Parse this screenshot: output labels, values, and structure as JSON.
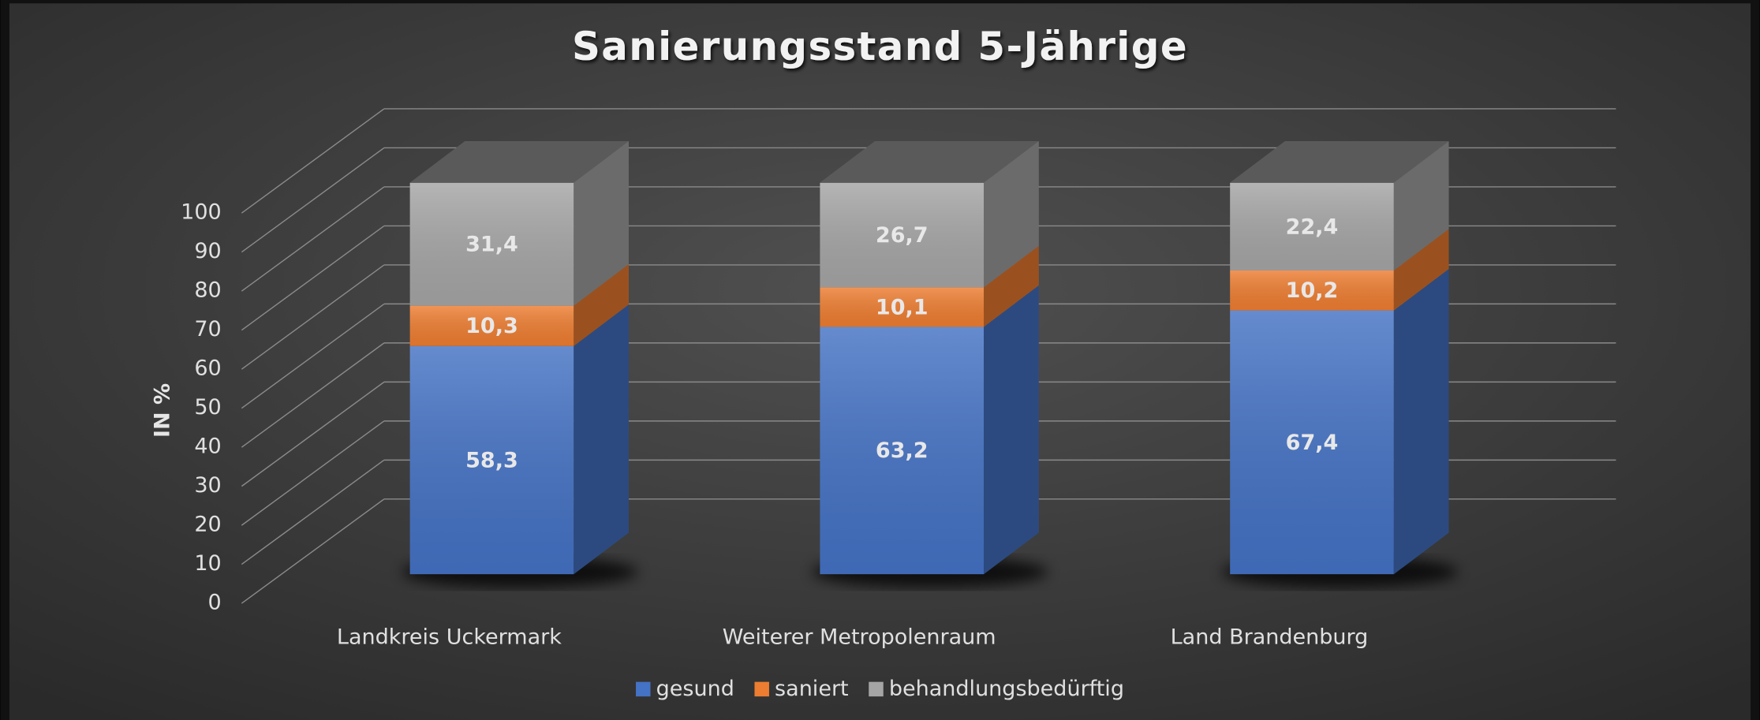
{
  "chart_data": {
    "type": "bar3d_stacked",
    "title": "Sanierungsstand 5-Jährige",
    "y_label": "IN %",
    "categories": [
      "Landkreis Uckermark",
      "Weiterer Metropolenraum",
      "Land Brandenburg"
    ],
    "series": [
      {
        "name": "gesund",
        "color": "#4472c4",
        "values": [
          58.3,
          63.2,
          67.4
        ],
        "value_labels": [
          "58,3",
          "63,2",
          "67,4"
        ]
      },
      {
        "name": "saniert",
        "color": "#ed7d31",
        "values": [
          10.3,
          10.1,
          10.2
        ],
        "value_labels": [
          "10,3",
          "10,1",
          "10,2"
        ]
      },
      {
        "name": "behandlungsbedürftig",
        "color": "#a5a5a5",
        "values": [
          31.4,
          26.7,
          22.4
        ],
        "value_labels": [
          "31,4",
          "26,7",
          "22,4"
        ]
      }
    ],
    "ylim": [
      0,
      100
    ],
    "yticks": [
      0,
      10,
      20,
      30,
      40,
      50,
      60,
      70,
      80,
      90,
      100
    ],
    "grid": true,
    "legend": "bottom"
  }
}
